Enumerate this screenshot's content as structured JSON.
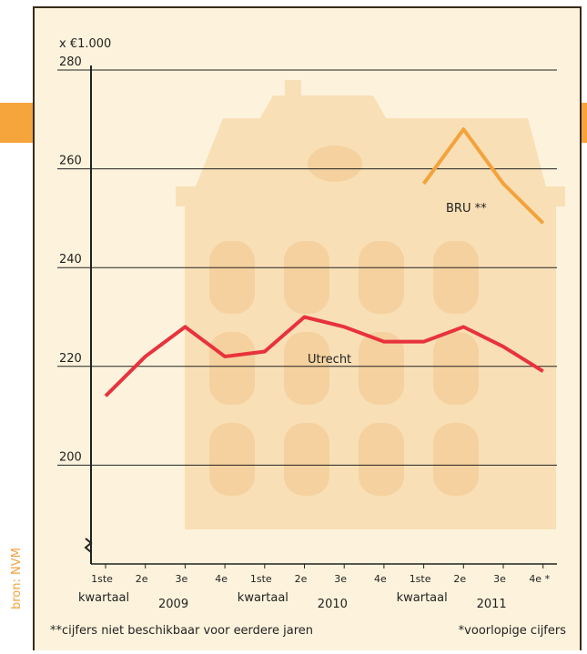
{
  "chart_data": {
    "type": "line",
    "y_unit_label": "x €1.000",
    "categories": [
      "1ste",
      "2e",
      "3e",
      "4e",
      "1ste",
      "2e",
      "3e",
      "4e",
      "1ste",
      "2e",
      "3e",
      "4e *"
    ],
    "x_groups": [
      {
        "label": "kwartaal",
        "year": "2009"
      },
      {
        "label": "kwartaal",
        "year": "2010"
      },
      {
        "label": "kwartaal",
        "year": "2011"
      }
    ],
    "series": [
      {
        "name": "Utrecht",
        "color": "#e8323c",
        "values": [
          214,
          222,
          228,
          222,
          223,
          230,
          228,
          225,
          225,
          228,
          224,
          219
        ]
      },
      {
        "name": "BRU **",
        "color": "#f3a23c",
        "values": [
          null,
          null,
          null,
          null,
          null,
          null,
          null,
          null,
          257,
          268,
          257,
          249
        ]
      }
    ],
    "ylim": [
      180,
      280
    ],
    "yticks": [
      200,
      220,
      240,
      260,
      280
    ],
    "grid": true,
    "source": "bron: NVM",
    "footnotes": [
      "**cijfers niet beschikbaar voor eerdere jaren",
      "*voorlopige cijfers"
    ]
  }
}
